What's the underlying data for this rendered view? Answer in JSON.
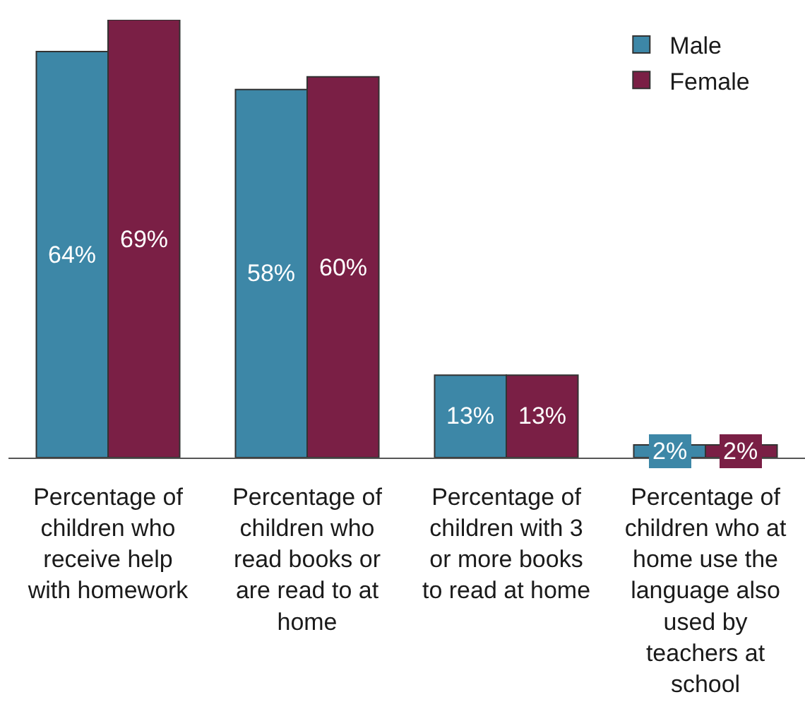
{
  "chart_data": {
    "type": "bar",
    "categories": [
      "Percentage of children who receive help with homework",
      "Percentage of children who read books or are read to at home",
      "Percentage of children with 3 or more books to read at home",
      "Percentage of children who at home use the language also used by teachers at school"
    ],
    "series": [
      {
        "name": "Male",
        "color": "#3d87a7",
        "values": [
          64,
          58,
          13,
          2
        ],
        "value_labels": [
          "64%",
          "58%",
          "13%",
          "2%"
        ]
      },
      {
        "name": "Female",
        "color": "#7a1f45",
        "values": [
          69,
          60,
          13,
          2
        ],
        "value_labels": [
          "69%",
          "60%",
          "13%",
          "2%"
        ]
      }
    ],
    "legend": "top right",
    "tick_labels": "x"
  }
}
